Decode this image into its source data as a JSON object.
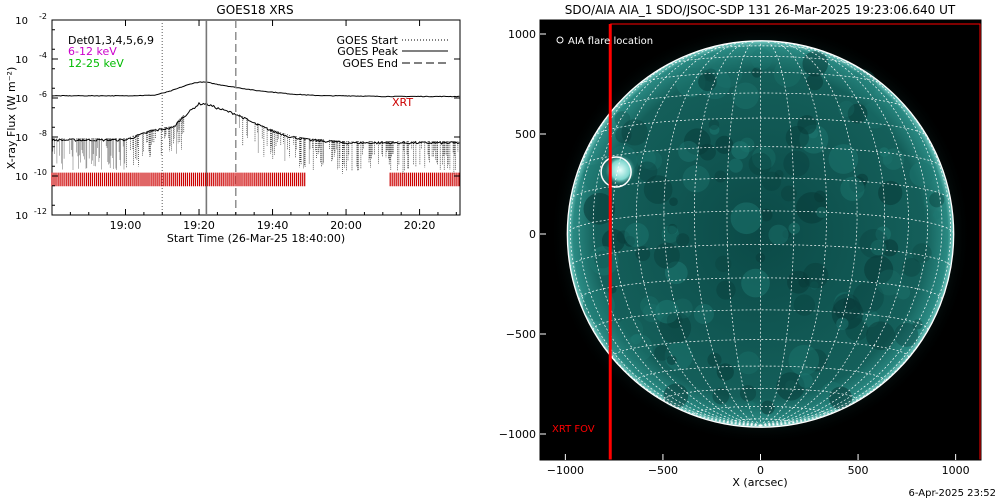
{
  "left_panel": {
    "title": "GOES18 XRS",
    "ylabel": "X-ray Flux (W m⁻²)",
    "xlabel": "Start Time (26-Mar-25 18:40:00)",
    "legend_lines": {
      "dets": "Det01,3,4,5,6,9",
      "low": "6-12 keV",
      "high": "12-25 keV",
      "low_color": "#cc00cc",
      "high_color": "#00bb00"
    },
    "legend_events": [
      {
        "label": "GOES Start",
        "style": "dotted"
      },
      {
        "label": "GOES Peak",
        "style": "solid"
      },
      {
        "label": "GOES End",
        "style": "dashed"
      }
    ],
    "xrt_label": "XRT",
    "xrt_color": "#cc0000"
  },
  "right_panel": {
    "title": "SDO/AIA AIA_1 SDO/JSOC-SDP 131 26-Mar-2025 19:23:06.640 UT",
    "legend": "AIA flare location",
    "xrt_fov_label": "XRT FOV",
    "xlabel": "X (arcsec)",
    "fov_color": "#ff0000",
    "disk_color": "#0f5a55"
  },
  "footer": "6-Apr-2025 23:52",
  "chart_data": [
    {
      "type": "line",
      "title": "GOES18 XRS",
      "xlabel": "Start Time (26-Mar-25 18:40:00)",
      "ylabel": "X-ray Flux (W m⁻²)",
      "x_unit": "minutes since 18:40:00",
      "xlim": [
        0,
        111
      ],
      "ylim": [
        1e-12,
        0.01
      ],
      "yscale": "log",
      "x_ticks": [
        {
          "t": 20,
          "label": "19:00"
        },
        {
          "t": 40,
          "label": "19:20"
        },
        {
          "t": 60,
          "label": "19:40"
        },
        {
          "t": 80,
          "label": "20:00"
        },
        {
          "t": 100,
          "label": "20:20"
        }
      ],
      "y_ticks": [
        {
          "v": 1e-12,
          "base": "10",
          "exp": "-12"
        },
        {
          "v": 1e-10,
          "base": "10",
          "exp": "-10"
        },
        {
          "v": 1e-08,
          "base": "10",
          "exp": "-8"
        },
        {
          "v": 1e-06,
          "base": "10",
          "exp": "-6"
        },
        {
          "v": 0.0001,
          "base": "10",
          "exp": "-4"
        },
        {
          "v": 0.01,
          "base": "10",
          "exp": "-2"
        }
      ],
      "series": [
        {
          "x": [
            0,
            10,
            20,
            28,
            32,
            35,
            38,
            40,
            42,
            45,
            50,
            55,
            60,
            65,
            70,
            75,
            80,
            90,
            100,
            111
          ],
          "y": [
            1.3e-06,
            1.3e-06,
            1.3e-06,
            1.4e-06,
            2.2e-06,
            3.5e-06,
            5.5e-06,
            6.5e-06,
            6.5e-06,
            5e-06,
            3.5e-06,
            2.5e-06,
            2e-06,
            1.6e-06,
            1.4e-06,
            1.3e-06,
            1.3e-06,
            1.2e-06,
            1.2e-06,
            1.2e-06
          ]
        },
        {
          "x": [
            0,
            10,
            20,
            27,
            30,
            33,
            35,
            38,
            40,
            42,
            45,
            50,
            55,
            60,
            65,
            70,
            75,
            80,
            90,
            100,
            111
          ],
          "y": [
            7e-09,
            7e-09,
            7e-09,
            2e-08,
            2.5e-08,
            3e-08,
            8e-08,
            2.5e-07,
            5e-07,
            5e-07,
            3e-07,
            1.5e-07,
            5e-08,
            2e-08,
            1e-08,
            7e-09,
            6e-09,
            5e-09,
            5e-09,
            5e-09,
            5e-09
          ]
        }
      ],
      "event_lines": [
        {
          "label": "GOES Start",
          "t": 30,
          "style": "dotted"
        },
        {
          "label": "GOES Peak",
          "t": 42,
          "style": "solid"
        },
        {
          "label": "GOES End",
          "t": 50,
          "style": "dashed"
        }
      ],
      "xrt_coverage": [
        [
          0,
          69
        ],
        [
          92,
          111
        ]
      ]
    },
    {
      "type": "scatter",
      "title": "SDO/AIA AIA_1 SDO/JSOC-SDP 131 26-Mar-2025 19:23:06.640 UT",
      "xlabel": "X (arcsec)",
      "xlim": [
        -1130,
        1130
      ],
      "ylim": [
        -1130,
        1070
      ],
      "x_ticks": [
        -1000,
        -500,
        0,
        500,
        1000
      ],
      "y_ticks": [
        -1000,
        -500,
        0,
        500,
        1000
      ],
      "x_tick_labels": [
        "−1000",
        "−500",
        "0",
        "500",
        "1000"
      ],
      "y_tick_labels": [
        "−1000",
        "−500",
        "0",
        "500",
        "1000"
      ],
      "solar_radius_arcsec": 990,
      "flare_location": [
        -740,
        310
      ],
      "xrt_fov": {
        "x": [
          -770,
          1130
        ],
        "y": [
          -1130,
          1050
        ]
      }
    }
  ]
}
